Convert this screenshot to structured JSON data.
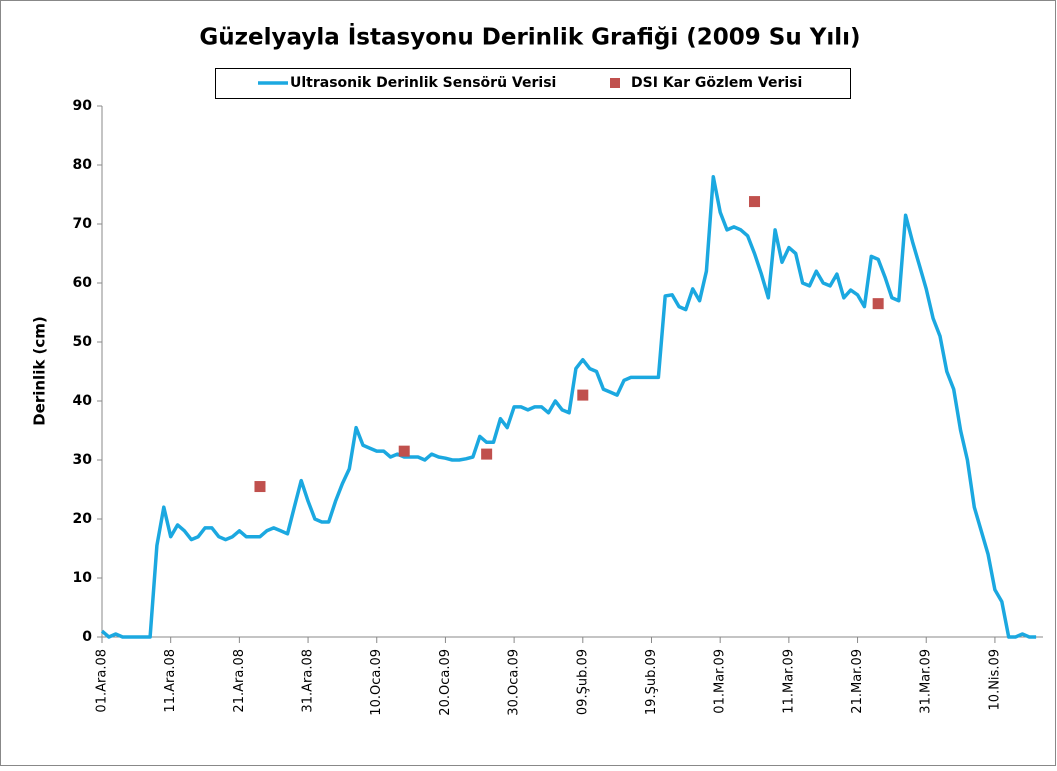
{
  "chart_data": {
    "type": "line",
    "title": "Güzelyayla İstasyonu Derinlik Grafiği (2009 Su Yılı)",
    "y_label": "Derinlik (cm)",
    "ylim": [
      0,
      90
    ],
    "yticks": [
      0,
      10,
      20,
      30,
      40,
      50,
      60,
      70,
      80,
      90
    ],
    "xlim": [
      "2008-12-01",
      "2009-04-17"
    ],
    "xticks": [
      {
        "value": "2008-12-01",
        "label": "01.Ara.08"
      },
      {
        "value": "2008-12-11",
        "label": "11.Ara.08"
      },
      {
        "value": "2008-12-21",
        "label": "21.Ara.08"
      },
      {
        "value": "2008-12-31",
        "label": "31.Ara.08"
      },
      {
        "value": "2009-01-10",
        "label": "10.Oca.09"
      },
      {
        "value": "2009-01-20",
        "label": "20.Oca.09"
      },
      {
        "value": "2009-01-30",
        "label": "30.Oca.09"
      },
      {
        "value": "2009-02-09",
        "label": "09.Şub.09"
      },
      {
        "value": "2009-02-19",
        "label": "19.Şub.09"
      },
      {
        "value": "2009-03-01",
        "label": "01.Mar.09"
      },
      {
        "value": "2009-03-11",
        "label": "11.Mar.09"
      },
      {
        "value": "2009-03-21",
        "label": "21.Mar.09"
      },
      {
        "value": "2009-03-31",
        "label": "31.Mar.09"
      },
      {
        "value": "2009-04-10",
        "label": "10.Nis.09"
      }
    ],
    "grid": false,
    "x": [
      "2008-12-01",
      "2008-12-02",
      "2008-12-03",
      "2008-12-04",
      "2008-12-05",
      "2008-12-06",
      "2008-12-07",
      "2008-12-08",
      "2008-12-09",
      "2008-12-10",
      "2008-12-11",
      "2008-12-12",
      "2008-12-13",
      "2008-12-14",
      "2008-12-15",
      "2008-12-16",
      "2008-12-17",
      "2008-12-18",
      "2008-12-19",
      "2008-12-20",
      "2008-12-21",
      "2008-12-22",
      "2008-12-23",
      "2008-12-24",
      "2008-12-25",
      "2008-12-26",
      "2008-12-27",
      "2008-12-28",
      "2008-12-29",
      "2008-12-30",
      "2008-12-31",
      "2009-01-01",
      "2009-01-02",
      "2009-01-03",
      "2009-01-04",
      "2009-01-05",
      "2009-01-06",
      "2009-01-07",
      "2009-01-08",
      "2009-01-09",
      "2009-01-10",
      "2009-01-11",
      "2009-01-12",
      "2009-01-13",
      "2009-01-14",
      "2009-01-15",
      "2009-01-16",
      "2009-01-17",
      "2009-01-18",
      "2009-01-19",
      "2009-01-20",
      "2009-01-21",
      "2009-01-22",
      "2009-01-23",
      "2009-01-24",
      "2009-01-25",
      "2009-01-26",
      "2009-01-27",
      "2009-01-28",
      "2009-01-29",
      "2009-01-30",
      "2009-01-31",
      "2009-02-01",
      "2009-02-02",
      "2009-02-03",
      "2009-02-04",
      "2009-02-05",
      "2009-02-06",
      "2009-02-07",
      "2009-02-08",
      "2009-02-09",
      "2009-02-10",
      "2009-02-11",
      "2009-02-12",
      "2009-02-13",
      "2009-02-14",
      "2009-02-15",
      "2009-02-16",
      "2009-02-17",
      "2009-02-18",
      "2009-02-19",
      "2009-02-20",
      "2009-02-21",
      "2009-02-22",
      "2009-02-23",
      "2009-02-24",
      "2009-02-25",
      "2009-02-26",
      "2009-02-27",
      "2009-02-28",
      "2009-03-01",
      "2009-03-02",
      "2009-03-03",
      "2009-03-04",
      "2009-03-05",
      "2009-03-06",
      "2009-03-07",
      "2009-03-08",
      "2009-03-09",
      "2009-03-10",
      "2009-03-11",
      "2009-03-12",
      "2009-03-13",
      "2009-03-14",
      "2009-03-15",
      "2009-03-16",
      "2009-03-17",
      "2009-03-18",
      "2009-03-19",
      "2009-03-20",
      "2009-03-21",
      "2009-03-22",
      "2009-03-23",
      "2009-03-24",
      "2009-03-25",
      "2009-03-26",
      "2009-03-27",
      "2009-03-28",
      "2009-03-29",
      "2009-03-30",
      "2009-03-31",
      "2009-04-01",
      "2009-04-02",
      "2009-04-03",
      "2009-04-04",
      "2009-04-05",
      "2009-04-06",
      "2009-04-07",
      "2009-04-08",
      "2009-04-09",
      "2009-04-10",
      "2009-04-11",
      "2009-04-12",
      "2009-04-13",
      "2009-04-14",
      "2009-04-15",
      "2009-04-16"
    ],
    "series": [
      {
        "name": "Ultrasonik Derinlik Sensörü Verisi",
        "color": "#1ba8e0",
        "values": [
          1,
          0,
          0.5,
          0,
          0,
          0,
          0,
          0,
          15.5,
          22,
          17,
          19,
          18,
          16.5,
          17,
          18.5,
          18.5,
          17,
          16.5,
          17,
          18,
          17,
          17,
          17,
          18,
          18.5,
          18,
          17.5,
          22,
          26.5,
          23,
          20,
          19.5,
          19.5,
          23,
          26,
          28.5,
          35.5,
          32.5,
          32,
          31.5,
          31.5,
          30.5,
          31,
          30.5,
          30.5,
          30.5,
          30,
          31,
          30.5,
          30.3,
          30,
          30,
          30.2,
          30.5,
          34,
          33,
          33,
          37,
          35.5,
          39,
          39,
          38.5,
          39,
          39,
          38,
          40,
          38.5,
          38,
          45.5,
          47,
          45.5,
          45,
          42,
          41.5,
          41,
          43.5,
          44,
          44,
          44,
          44,
          44,
          57.8,
          58,
          56,
          55.5,
          59,
          57,
          62,
          78,
          72,
          69,
          69.5,
          69,
          68,
          65,
          61.5,
          57.5,
          69,
          63.5,
          66,
          65,
          60,
          59.5,
          62,
          60,
          59.5,
          61.5,
          57.5,
          58.8,
          58,
          56,
          64.5,
          64,
          61,
          57.5,
          57,
          71.5,
          67,
          63,
          59,
          54,
          51,
          45,
          42,
          35,
          30,
          22,
          18,
          14,
          8,
          6,
          0,
          0,
          0.5,
          0,
          0
        ]
      },
      {
        "name": "DSI Kar Gözlem Verisi",
        "color": "#c0504d",
        "x": [
          "2008-12-24",
          "2009-01-14",
          "2009-01-26",
          "2009-02-09",
          "2009-03-06",
          "2009-03-24"
        ],
        "values": [
          25.5,
          31.5,
          31,
          41,
          73.8,
          56.5
        ]
      }
    ]
  }
}
